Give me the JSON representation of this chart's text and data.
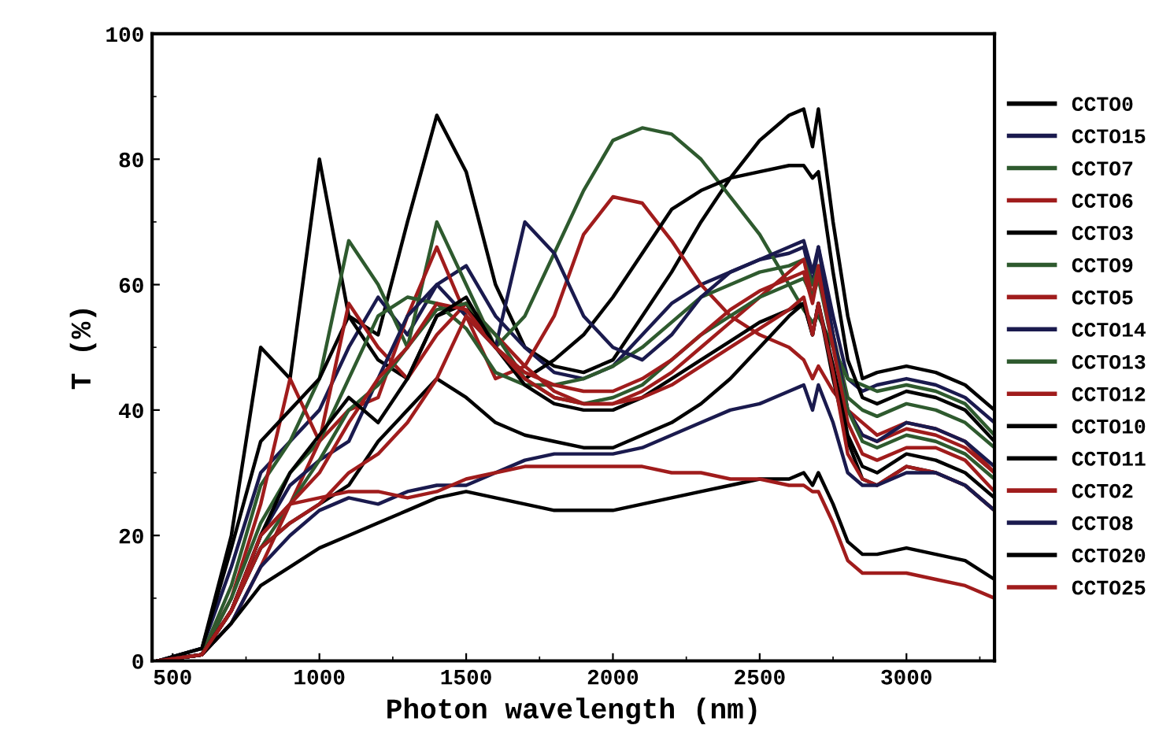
{
  "chart_data": {
    "type": "line",
    "xlabel": "Photon wavelength (nm)",
    "ylabel": "T (%)",
    "xlim": [
      430,
      3300
    ],
    "ylim": [
      0,
      100
    ],
    "xticks": [
      500,
      1000,
      1500,
      2000,
      2500,
      3000
    ],
    "yticks": [
      0,
      20,
      40,
      60,
      80,
      100
    ],
    "grid": false,
    "legend": "right",
    "x": [
      450,
      600,
      700,
      800,
      900,
      1000,
      1100,
      1200,
      1300,
      1400,
      1500,
      1600,
      1700,
      1800,
      1900,
      2000,
      2100,
      2200,
      2300,
      2400,
      2500,
      2600,
      2650,
      2680,
      2700,
      2750,
      2800,
      2850,
      2900,
      3000,
      3100,
      3200,
      3300
    ],
    "series": [
      {
        "name": "CCTO0",
        "color": "#000000",
        "values": [
          0,
          2,
          20,
          50,
          45,
          80,
          55,
          52,
          70,
          87,
          78,
          60,
          50,
          47,
          46,
          48,
          55,
          62,
          70,
          77,
          83,
          87,
          88,
          82,
          88,
          70,
          55,
          45,
          46,
          47,
          46,
          44,
          40
        ]
      },
      {
        "name": "CCTO15",
        "color": "#1a1a4e",
        "values": [
          0,
          2,
          15,
          30,
          35,
          40,
          50,
          58,
          52,
          60,
          63,
          55,
          50,
          46,
          45,
          47,
          52,
          57,
          60,
          62,
          64,
          65,
          66,
          60,
          66,
          55,
          45,
          43,
          44,
          45,
          44,
          42,
          38
        ]
      },
      {
        "name": "CCTO7",
        "color": "#2e5a2e",
        "values": [
          0,
          1,
          12,
          28,
          35,
          45,
          67,
          60,
          50,
          70,
          60,
          50,
          55,
          65,
          75,
          83,
          85,
          84,
          80,
          74,
          68,
          60,
          56,
          54,
          55,
          50,
          45,
          44,
          43,
          44,
          43,
          41,
          36
        ]
      },
      {
        "name": "CCTO6",
        "color": "#a01c1c",
        "values": [
          0,
          1,
          10,
          25,
          45,
          35,
          40,
          42,
          55,
          66,
          55,
          45,
          47,
          55,
          68,
          74,
          73,
          67,
          60,
          55,
          52,
          50,
          48,
          45,
          47,
          43,
          40,
          38,
          36,
          38,
          37,
          35,
          30
        ]
      },
      {
        "name": "CCTO3",
        "color": "#000000",
        "values": [
          0,
          2,
          18,
          35,
          40,
          45,
          55,
          48,
          45,
          55,
          57,
          50,
          45,
          48,
          52,
          58,
          65,
          72,
          75,
          77,
          78,
          79,
          79,
          77,
          78,
          62,
          48,
          42,
          41,
          43,
          42,
          40,
          35
        ]
      },
      {
        "name": "CCTO9",
        "color": "#2e5a2e",
        "values": [
          0,
          1,
          10,
          22,
          30,
          35,
          45,
          55,
          58,
          57,
          53,
          46,
          44,
          44,
          45,
          47,
          50,
          54,
          58,
          60,
          62,
          63,
          64,
          60,
          63,
          52,
          42,
          40,
          39,
          41,
          40,
          38,
          34
        ]
      },
      {
        "name": "CCTO5",
        "color": "#a01c1c",
        "values": [
          0,
          1,
          8,
          20,
          25,
          35,
          57,
          50,
          45,
          52,
          57,
          52,
          47,
          43,
          41,
          41,
          43,
          46,
          50,
          54,
          58,
          62,
          64,
          58,
          63,
          52,
          40,
          36,
          35,
          37,
          36,
          34,
          30
        ]
      },
      {
        "name": "CCTO14",
        "color": "#1a1a4e",
        "values": [
          0,
          1,
          8,
          20,
          28,
          32,
          35,
          45,
          55,
          60,
          55,
          50,
          70,
          65,
          55,
          50,
          48,
          52,
          58,
          62,
          64,
          66,
          67,
          62,
          66,
          52,
          40,
          36,
          35,
          38,
          37,
          35,
          31
        ]
      },
      {
        "name": "CCTO13",
        "color": "#2e5a2e",
        "values": [
          0,
          1,
          8,
          18,
          25,
          32,
          40,
          44,
          50,
          56,
          57,
          52,
          45,
          42,
          41,
          42,
          44,
          48,
          52,
          55,
          58,
          60,
          61,
          58,
          61,
          50,
          40,
          35,
          34,
          36,
          35,
          33,
          29
        ]
      },
      {
        "name": "CCTO12",
        "color": "#a01c1c",
        "values": [
          0,
          1,
          6,
          15,
          25,
          30,
          38,
          45,
          50,
          57,
          56,
          50,
          46,
          44,
          43,
          43,
          45,
          48,
          52,
          56,
          59,
          61,
          62,
          57,
          62,
          50,
          38,
          33,
          32,
          34,
          34,
          32,
          27
        ]
      },
      {
        "name": "CCTO10",
        "color": "#000000",
        "values": [
          0,
          1,
          8,
          20,
          30,
          36,
          42,
          38,
          45,
          55,
          58,
          50,
          44,
          41,
          40,
          40,
          42,
          45,
          48,
          51,
          54,
          56,
          57,
          52,
          57,
          47,
          36,
          31,
          30,
          33,
          32,
          30,
          26
        ]
      },
      {
        "name": "CCTO11",
        "color": "#000000",
        "values": [
          0,
          1,
          8,
          18,
          22,
          25,
          28,
          35,
          40,
          45,
          42,
          38,
          36,
          35,
          34,
          34,
          36,
          38,
          41,
          45,
          50,
          55,
          57,
          52,
          57,
          45,
          35,
          29,
          28,
          31,
          30,
          28,
          24
        ]
      },
      {
        "name": "CCTO2",
        "color": "#a01c1c",
        "values": [
          0,
          1,
          8,
          18,
          22,
          25,
          30,
          33,
          38,
          45,
          55,
          50,
          45,
          42,
          41,
          41,
          42,
          44,
          47,
          50,
          53,
          56,
          58,
          52,
          57,
          46,
          33,
          29,
          28,
          31,
          30,
          28,
          24
        ]
      },
      {
        "name": "CCTO8",
        "color": "#1a1a4e",
        "values": [
          0,
          1,
          6,
          15,
          20,
          24,
          26,
          25,
          27,
          28,
          28,
          30,
          32,
          33,
          33,
          33,
          34,
          36,
          38,
          40,
          41,
          43,
          44,
          40,
          44,
          38,
          30,
          28,
          28,
          30,
          30,
          28,
          24
        ]
      },
      {
        "name": "CCTO20",
        "color": "#000000",
        "values": [
          0,
          1,
          6,
          12,
          15,
          18,
          20,
          22,
          24,
          26,
          27,
          26,
          25,
          24,
          24,
          24,
          25,
          26,
          27,
          28,
          29,
          29,
          30,
          28,
          30,
          25,
          19,
          17,
          17,
          18,
          17,
          16,
          13
        ]
      },
      {
        "name": "CCTO25",
        "color": "#a01c1c",
        "values": [
          0,
          1,
          8,
          20,
          25,
          26,
          27,
          27,
          26,
          27,
          29,
          30,
          31,
          31,
          31,
          31,
          31,
          30,
          30,
          29,
          29,
          28,
          28,
          27,
          27,
          22,
          16,
          14,
          14,
          14,
          13,
          12,
          10
        ]
      }
    ]
  }
}
